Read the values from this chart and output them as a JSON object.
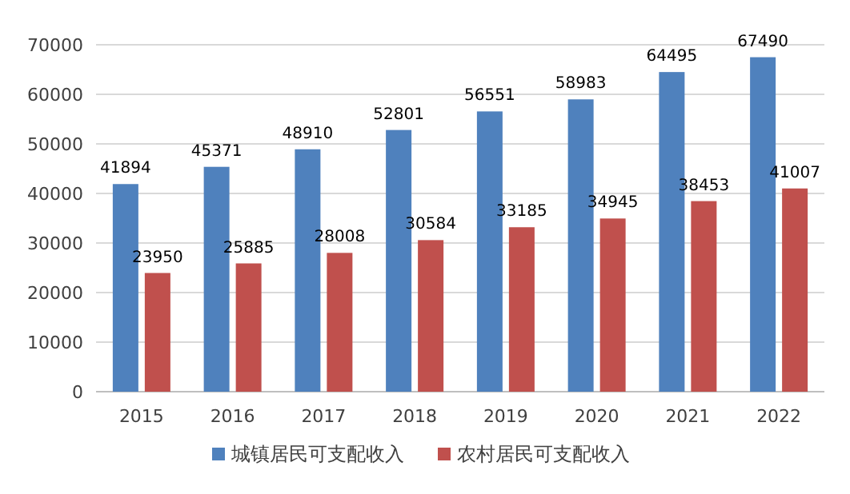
{
  "chart_data": {
    "type": "bar",
    "categories": [
      "2015",
      "2016",
      "2017",
      "2018",
      "2019",
      "2020",
      "2021",
      "2022"
    ],
    "series": [
      {
        "name": "城镇居民可支配收入",
        "color": "#4f81bd",
        "values": [
          41894,
          45371,
          48910,
          52801,
          56551,
          58983,
          64495,
          67490
        ]
      },
      {
        "name": "农村居民可支配收入",
        "color": "#c0504d",
        "values": [
          23950,
          25885,
          28008,
          30584,
          33185,
          34945,
          38453,
          41007
        ]
      }
    ],
    "ylim": [
      0,
      70000
    ],
    "yticks": [
      0,
      10000,
      20000,
      30000,
      40000,
      50000,
      60000,
      70000
    ],
    "grid": "y",
    "legend": "bottom",
    "data_labels": true
  }
}
